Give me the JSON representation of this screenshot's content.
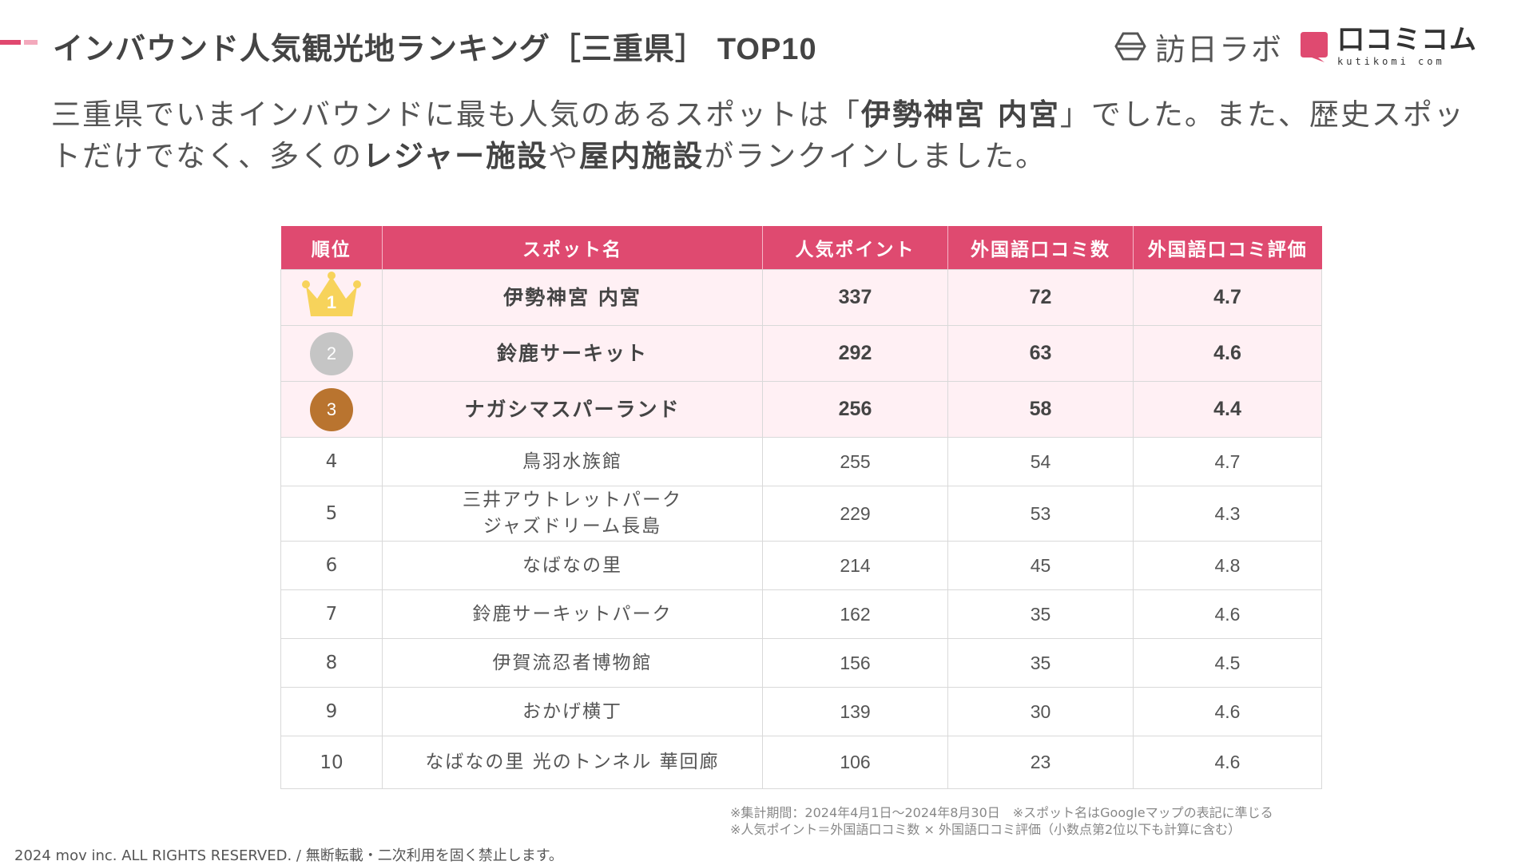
{
  "title": {
    "main": "インバウンド人気観光地ランキング［三重県］",
    "latin": "TOP10"
  },
  "logos": {
    "houni": "訪日ラボ",
    "kuchikomi": "口コミコム",
    "kuchikomi_sub": "kutikomi com"
  },
  "lead": {
    "t1": "三重県でいまインバウンドに最も人気のあるスポットは「",
    "b1": "伊勢神宮 内宮",
    "t2": "」でした。また、歴史スポットだけでなく、多くの",
    "b2": "レジャー施設",
    "t3": "や",
    "b3": "屋内施設",
    "t4": "がランクインしました。"
  },
  "table": {
    "headers": [
      "順位",
      "スポット名",
      "人気ポイント",
      "外国語口コミ数",
      "外国語口コミ評価"
    ],
    "rows": [
      {
        "rank": "1",
        "name": "伊勢神宮 内宮",
        "points": "337",
        "reviews": "72",
        "rating": "4.7"
      },
      {
        "rank": "2",
        "name": "鈴鹿サーキット",
        "points": "292",
        "reviews": "63",
        "rating": "4.6"
      },
      {
        "rank": "3",
        "name": "ナガシマスパーランド",
        "points": "256",
        "reviews": "58",
        "rating": "4.4"
      },
      {
        "rank": "4",
        "name": "鳥羽水族館",
        "points": "255",
        "reviews": "54",
        "rating": "4.7"
      },
      {
        "rank": "5",
        "name": "三井アウトレットパーク",
        "name2": "ジャズドリーム長島",
        "points": "229",
        "reviews": "53",
        "rating": "4.3"
      },
      {
        "rank": "6",
        "name": "なばなの里",
        "points": "214",
        "reviews": "45",
        "rating": "4.8"
      },
      {
        "rank": "7",
        "name": "鈴鹿サーキットパーク",
        "points": "162",
        "reviews": "35",
        "rating": "4.6"
      },
      {
        "rank": "8",
        "name": "伊賀流忍者博物館",
        "points": "156",
        "reviews": "35",
        "rating": "4.5"
      },
      {
        "rank": "9",
        "name": "おかげ横丁",
        "points": "139",
        "reviews": "30",
        "rating": "4.6"
      },
      {
        "rank": "10",
        "name": "なばなの里 光のトンネル 華回廊",
        "points": "106",
        "reviews": "23",
        "rating": "4.6"
      }
    ]
  },
  "notes": {
    "line1": "※集計期間：2024年4月1日〜2024年8月30日　※スポット名はGoogleマップの表記に準じる",
    "line2": "※人気ポイント＝外国語口コミ数 × 外国語口コミ評価（小数点第2位以下も計算に含む）"
  },
  "footer": "2024 mov inc. ALL RIGHTS RESERVED. / 無断転載・二次利用を固く禁止します。",
  "colors": {
    "accent": "#df4a70",
    "accent_light": "#f3a9bc",
    "row_highlight": "#fff0f4",
    "gold": "#f7d35b",
    "silver": "#c5c5c5",
    "bronze": "#b9742f"
  }
}
